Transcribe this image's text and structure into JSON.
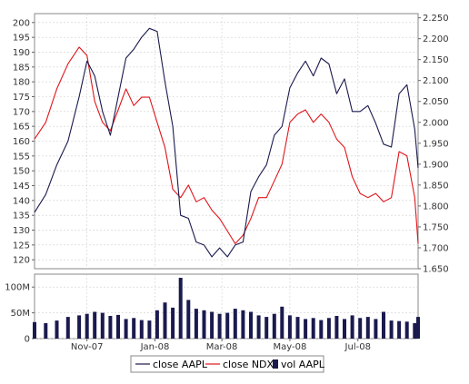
{
  "chart_data": {
    "type": "line",
    "title": "",
    "legend": {
      "placement": "bottom-center",
      "entries": [
        "close AAPL",
        "close NDX",
        "vol AAPL"
      ]
    },
    "x_ticks": [
      "Nov-07",
      "Jan-08",
      "Mar-08",
      "May-08",
      "Jul-08"
    ],
    "x_range": [
      "2007-09-15",
      "2008-08-24"
    ],
    "x_tick_dates": [
      "2007-11-01",
      "2008-01-01",
      "2008-03-01",
      "2008-05-01",
      "2008-07-01"
    ],
    "price_axis": {
      "ticks": [
        "120",
        "125",
        "130",
        "135",
        "140",
        "145",
        "150",
        "155",
        "160",
        "165",
        "170",
        "175",
        "180",
        "185",
        "190",
        "195",
        "200"
      ],
      "ylim": [
        117,
        203
      ]
    },
    "ndx_axis": {
      "ticks": [
        "1.650",
        "1.700",
        "1.750",
        "1.800",
        "1.850",
        "1.900",
        "1.950",
        "2.000",
        "2.050",
        "2.100",
        "2.150",
        "2.200",
        "2.250"
      ],
      "ylim": [
        1.65,
        2.26
      ]
    },
    "volume_axis": {
      "ticks": [
        "0",
        "50M",
        "100M"
      ],
      "ylim": [
        0,
        125
      ]
    },
    "grid": true,
    "colors": {
      "aapl": "#1a1a4e",
      "ndx": "#e0141a",
      "volume": "#1a1a4e",
      "grid": "#cfcfcf",
      "plot_border": "#888888"
    },
    "series": [
      {
        "name": "close AAPL",
        "axis": "left",
        "points": [
          [
            "2007-09-15",
            136
          ],
          [
            "2007-09-25",
            142
          ],
          [
            "2007-10-05",
            152
          ],
          [
            "2007-10-15",
            160
          ],
          [
            "2007-10-25",
            175
          ],
          [
            "2007-11-01",
            187
          ],
          [
            "2007-11-08",
            182
          ],
          [
            "2007-11-15",
            170
          ],
          [
            "2007-11-22",
            162
          ],
          [
            "2007-11-29",
            175
          ],
          [
            "2007-12-06",
            188
          ],
          [
            "2007-12-13",
            191
          ],
          [
            "2007-12-20",
            195
          ],
          [
            "2007-12-27",
            198
          ],
          [
            "2008-01-03",
            197
          ],
          [
            "2008-01-10",
            180
          ],
          [
            "2008-01-17",
            165
          ],
          [
            "2008-01-24",
            135
          ],
          [
            "2008-01-31",
            134
          ],
          [
            "2008-02-07",
            126
          ],
          [
            "2008-02-14",
            125
          ],
          [
            "2008-02-21",
            121
          ],
          [
            "2008-02-28",
            124
          ],
          [
            "2008-03-06",
            121
          ],
          [
            "2008-03-13",
            125
          ],
          [
            "2008-03-20",
            126
          ],
          [
            "2008-03-27",
            143
          ],
          [
            "2008-04-03",
            148
          ],
          [
            "2008-04-10",
            152
          ],
          [
            "2008-04-17",
            162
          ],
          [
            "2008-04-24",
            165
          ],
          [
            "2008-05-01",
            178
          ],
          [
            "2008-05-08",
            183
          ],
          [
            "2008-05-15",
            187
          ],
          [
            "2008-05-22",
            182
          ],
          [
            "2008-05-29",
            188
          ],
          [
            "2008-06-05",
            186
          ],
          [
            "2008-06-12",
            176
          ],
          [
            "2008-06-19",
            181
          ],
          [
            "2008-06-26",
            170
          ],
          [
            "2008-07-03",
            170
          ],
          [
            "2008-07-10",
            172
          ],
          [
            "2008-07-17",
            166
          ],
          [
            "2008-07-24",
            159
          ],
          [
            "2008-07-31",
            158
          ],
          [
            "2008-08-07",
            176
          ],
          [
            "2008-08-14",
            179
          ],
          [
            "2008-08-21",
            164
          ],
          [
            "2008-08-24",
            151
          ]
        ]
      },
      {
        "name": "close NDX",
        "axis": "right",
        "points": [
          [
            "2007-09-15",
            1.96
          ],
          [
            "2007-09-25",
            2.0
          ],
          [
            "2007-10-05",
            2.08
          ],
          [
            "2007-10-15",
            2.14
          ],
          [
            "2007-10-25",
            2.18
          ],
          [
            "2007-11-01",
            2.16
          ],
          [
            "2007-11-08",
            2.05
          ],
          [
            "2007-11-15",
            2.0
          ],
          [
            "2007-11-22",
            1.98
          ],
          [
            "2007-11-29",
            2.03
          ],
          [
            "2007-12-06",
            2.08
          ],
          [
            "2007-12-13",
            2.04
          ],
          [
            "2007-12-20",
            2.06
          ],
          [
            "2007-12-27",
            2.06
          ],
          [
            "2008-01-03",
            2.0
          ],
          [
            "2008-01-10",
            1.94
          ],
          [
            "2008-01-17",
            1.84
          ],
          [
            "2008-01-24",
            1.82
          ],
          [
            "2008-01-31",
            1.85
          ],
          [
            "2008-02-07",
            1.81
          ],
          [
            "2008-02-14",
            1.82
          ],
          [
            "2008-02-21",
            1.79
          ],
          [
            "2008-02-28",
            1.77
          ],
          [
            "2008-03-06",
            1.74
          ],
          [
            "2008-03-13",
            1.71
          ],
          [
            "2008-03-20",
            1.73
          ],
          [
            "2008-03-27",
            1.77
          ],
          [
            "2008-04-03",
            1.82
          ],
          [
            "2008-04-10",
            1.82
          ],
          [
            "2008-04-17",
            1.86
          ],
          [
            "2008-04-24",
            1.9
          ],
          [
            "2008-05-01",
            2.0
          ],
          [
            "2008-05-08",
            2.02
          ],
          [
            "2008-05-15",
            2.03
          ],
          [
            "2008-05-22",
            2.0
          ],
          [
            "2008-05-29",
            2.02
          ],
          [
            "2008-06-05",
            2.0
          ],
          [
            "2008-06-12",
            1.96
          ],
          [
            "2008-06-19",
            1.94
          ],
          [
            "2008-06-26",
            1.87
          ],
          [
            "2008-07-03",
            1.83
          ],
          [
            "2008-07-10",
            1.82
          ],
          [
            "2008-07-17",
            1.83
          ],
          [
            "2008-07-24",
            1.81
          ],
          [
            "2008-07-31",
            1.82
          ],
          [
            "2008-08-07",
            1.93
          ],
          [
            "2008-08-14",
            1.92
          ],
          [
            "2008-08-21",
            1.82
          ],
          [
            "2008-08-24",
            1.71
          ]
        ]
      },
      {
        "name": "vol AAPL",
        "axis": "volume",
        "type": "bar",
        "points": [
          [
            "2007-09-15",
            32
          ],
          [
            "2007-09-25",
            30
          ],
          [
            "2007-10-05",
            35
          ],
          [
            "2007-10-15",
            42
          ],
          [
            "2007-10-25",
            45
          ],
          [
            "2007-11-01",
            48
          ],
          [
            "2007-11-08",
            52
          ],
          [
            "2007-11-15",
            50
          ],
          [
            "2007-11-22",
            44
          ],
          [
            "2007-11-29",
            46
          ],
          [
            "2007-12-06",
            38
          ],
          [
            "2007-12-13",
            40
          ],
          [
            "2007-12-20",
            36
          ],
          [
            "2007-12-27",
            35
          ],
          [
            "2008-01-03",
            55
          ],
          [
            "2008-01-10",
            70
          ],
          [
            "2008-01-17",
            60
          ],
          [
            "2008-01-24",
            118
          ],
          [
            "2008-01-31",
            75
          ],
          [
            "2008-02-07",
            58
          ],
          [
            "2008-02-14",
            55
          ],
          [
            "2008-02-21",
            52
          ],
          [
            "2008-02-28",
            48
          ],
          [
            "2008-03-06",
            50
          ],
          [
            "2008-03-13",
            58
          ],
          [
            "2008-03-20",
            55
          ],
          [
            "2008-03-27",
            52
          ],
          [
            "2008-04-03",
            45
          ],
          [
            "2008-04-10",
            42
          ],
          [
            "2008-04-17",
            48
          ],
          [
            "2008-04-24",
            62
          ],
          [
            "2008-05-01",
            45
          ],
          [
            "2008-05-08",
            42
          ],
          [
            "2008-05-15",
            38
          ],
          [
            "2008-05-22",
            40
          ],
          [
            "2008-05-29",
            36
          ],
          [
            "2008-06-05",
            40
          ],
          [
            "2008-06-12",
            44
          ],
          [
            "2008-06-19",
            38
          ],
          [
            "2008-06-26",
            45
          ],
          [
            "2008-07-03",
            40
          ],
          [
            "2008-07-10",
            42
          ],
          [
            "2008-07-17",
            38
          ],
          [
            "2008-07-24",
            52
          ],
          [
            "2008-07-31",
            35
          ],
          [
            "2008-08-07",
            34
          ],
          [
            "2008-08-14",
            33
          ],
          [
            "2008-08-21",
            30
          ],
          [
            "2008-08-24",
            42
          ]
        ]
      }
    ]
  }
}
